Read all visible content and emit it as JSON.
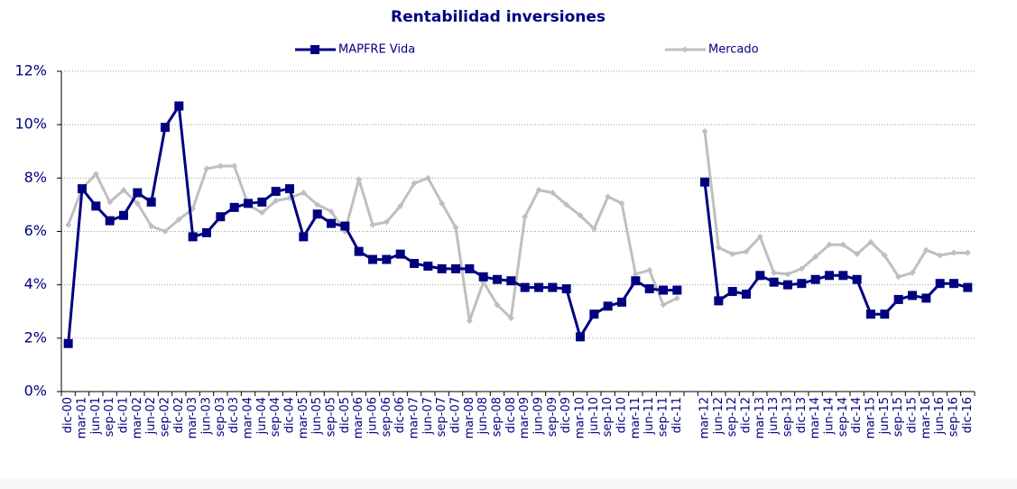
{
  "chart_data": {
    "type": "line",
    "title": "Rentabilidad inversiones",
    "categories": [
      "dic-00",
      "mar-01",
      "jun-01",
      "sep-01",
      "dic-01",
      "mar-02",
      "jun-02",
      "sep-02",
      "dic-02",
      "mar-03",
      "jun-03",
      "sep-03",
      "dic-03",
      "mar-04",
      "jun-04",
      "sep-04",
      "dic-04",
      "mar-05",
      "jun-05",
      "sep-05",
      "dic-05",
      "mar-06",
      "jun-06",
      "sep-06",
      "dic-06",
      "mar-07",
      "jun-07",
      "sep-07",
      "dic-07",
      "mar-08",
      "jun-08",
      "sep-08",
      "dic-08",
      "mar-09",
      "jun-09",
      "sep-09",
      "dic-09",
      "mar-10",
      "jun-10",
      "sep-10",
      "dic-10",
      "mar-11",
      "jun-11",
      "sep-11",
      "dic-11",
      null,
      "mar-12",
      "jun-12",
      "sep-12",
      "dic-12",
      "mar-13",
      "jun-13",
      "sep-13",
      "dic-13",
      "mar-14",
      "jun-14",
      "sep-14",
      "dic-14",
      "mar-15",
      "jun-15",
      "sep-15",
      "dic-15",
      "mar-16",
      "jun-16",
      "sep-16",
      "dic-16"
    ],
    "series": [
      {
        "name": "MAPFRE Vida",
        "color": "#000080",
        "marker": "square",
        "values": [
          1.8,
          7.6,
          6.95,
          6.4,
          6.6,
          7.45,
          7.1,
          9.9,
          10.7,
          5.8,
          5.95,
          6.55,
          6.9,
          7.05,
          7.1,
          7.5,
          7.6,
          5.8,
          6.65,
          6.3,
          6.2,
          5.25,
          4.95,
          4.95,
          5.15,
          4.8,
          4.7,
          4.6,
          4.6,
          4.6,
          4.3,
          4.2,
          4.15,
          3.9,
          3.9,
          3.9,
          3.85,
          2.05,
          2.9,
          3.2,
          3.35,
          4.15,
          3.85,
          3.8,
          3.8,
          null,
          7.85,
          3.4,
          3.75,
          3.65,
          4.35,
          4.1,
          4.0,
          4.05,
          4.2,
          4.35,
          4.35,
          4.2,
          2.9,
          2.9,
          3.45,
          3.6,
          3.5,
          4.05,
          4.05,
          3.9
        ]
      },
      {
        "name": "Mercado",
        "color": "#bfbfbf",
        "marker": "diamond",
        "values": [
          6.25,
          7.6,
          8.15,
          7.1,
          7.55,
          7.05,
          6.2,
          6.0,
          6.45,
          6.85,
          8.35,
          8.45,
          8.45,
          7.0,
          6.7,
          7.15,
          7.25,
          7.45,
          7.0,
          6.75,
          6.0,
          7.95,
          6.25,
          6.35,
          6.95,
          7.8,
          8.0,
          7.05,
          6.15,
          2.65,
          4.1,
          3.25,
          2.75,
          6.55,
          7.55,
          7.45,
          7.0,
          6.6,
          6.1,
          7.3,
          7.05,
          4.4,
          4.55,
          3.25,
          3.5,
          null,
          9.75,
          5.4,
          5.15,
          5.25,
          5.8,
          4.45,
          4.4,
          4.6,
          5.05,
          5.5,
          5.5,
          5.15,
          5.6,
          5.1,
          4.3,
          4.45,
          5.3,
          5.1,
          5.2,
          5.2
        ]
      }
    ],
    "ylim": [
      0,
      12
    ],
    "yticks": [
      {
        "value": 0,
        "label": "0%"
      },
      {
        "value": 2,
        "label": "2%"
      },
      {
        "value": 4,
        "label": "4%"
      },
      {
        "value": 6,
        "label": "6%"
      },
      {
        "value": 8,
        "label": "8%"
      },
      {
        "value": 10,
        "label": "10%"
      },
      {
        "value": 12,
        "label": "12%"
      }
    ],
    "grid": true,
    "legend": "top"
  }
}
